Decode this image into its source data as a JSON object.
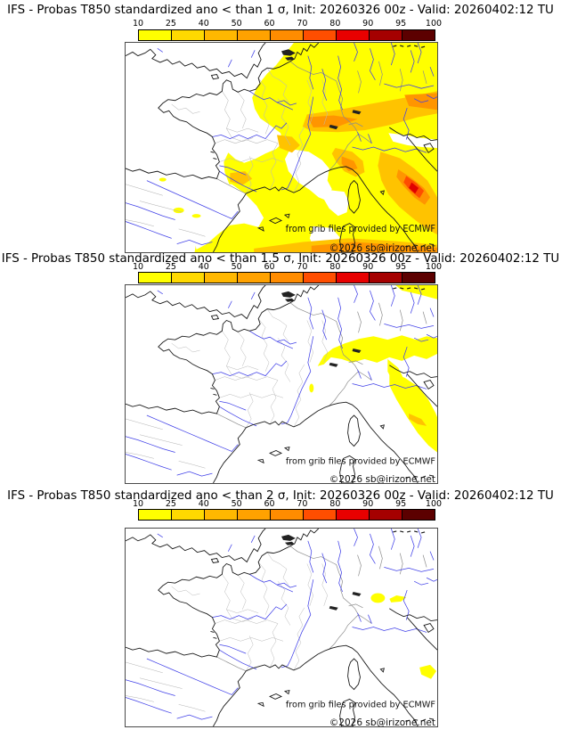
{
  "colorbar": {
    "tick_labels": [
      "10",
      "25",
      "40",
      "50",
      "60",
      "70",
      "80",
      "90",
      "95",
      "100"
    ],
    "segment_colors": [
      "#ffff00",
      "#ffd900",
      "#ffb800",
      "#ffa200",
      "#ff8c00",
      "#ff4e00",
      "#e80000",
      "#a50000",
      "#5c0000"
    ],
    "unit": "%"
  },
  "probability_scale": {
    "levels": [
      10,
      25,
      40,
      50,
      60,
      70,
      80,
      90,
      95,
      100
    ],
    "low_color": "#ffff00",
    "high_color": "#5c0000"
  },
  "map_colors": {
    "coastline": "#1a1a1a",
    "rivers": "#4040e8",
    "inner_borders": "#b8b8b8",
    "country_borders": "#8c8c8c",
    "background": "#ffffff"
  },
  "panels": [
    {
      "title": "IFS - Probas T850  standardized ano < than 1 σ, Init: 20260326 00z - Valid: 20260402:12 TU",
      "attribution": "from grib files provided by ECMWF",
      "copyright": "©2026 sb@irizone.net"
    },
    {
      "title": "IFS - Probas T850  standardized ano < than 1.5 σ, Init: 20260326 00z - Valid: 20260402:12 TU",
      "attribution": "from grib files provided by ECMWF",
      "copyright": "©2026 sb@irizone.net"
    },
    {
      "title": "IFS - Probas T850  standardized ano < than 2 σ, Init: 20260326 00z - Valid: 20260402:12 TU",
      "attribution": "from grib files provided by ECMWF",
      "copyright": "©2026 sb@irizone.net"
    }
  ]
}
